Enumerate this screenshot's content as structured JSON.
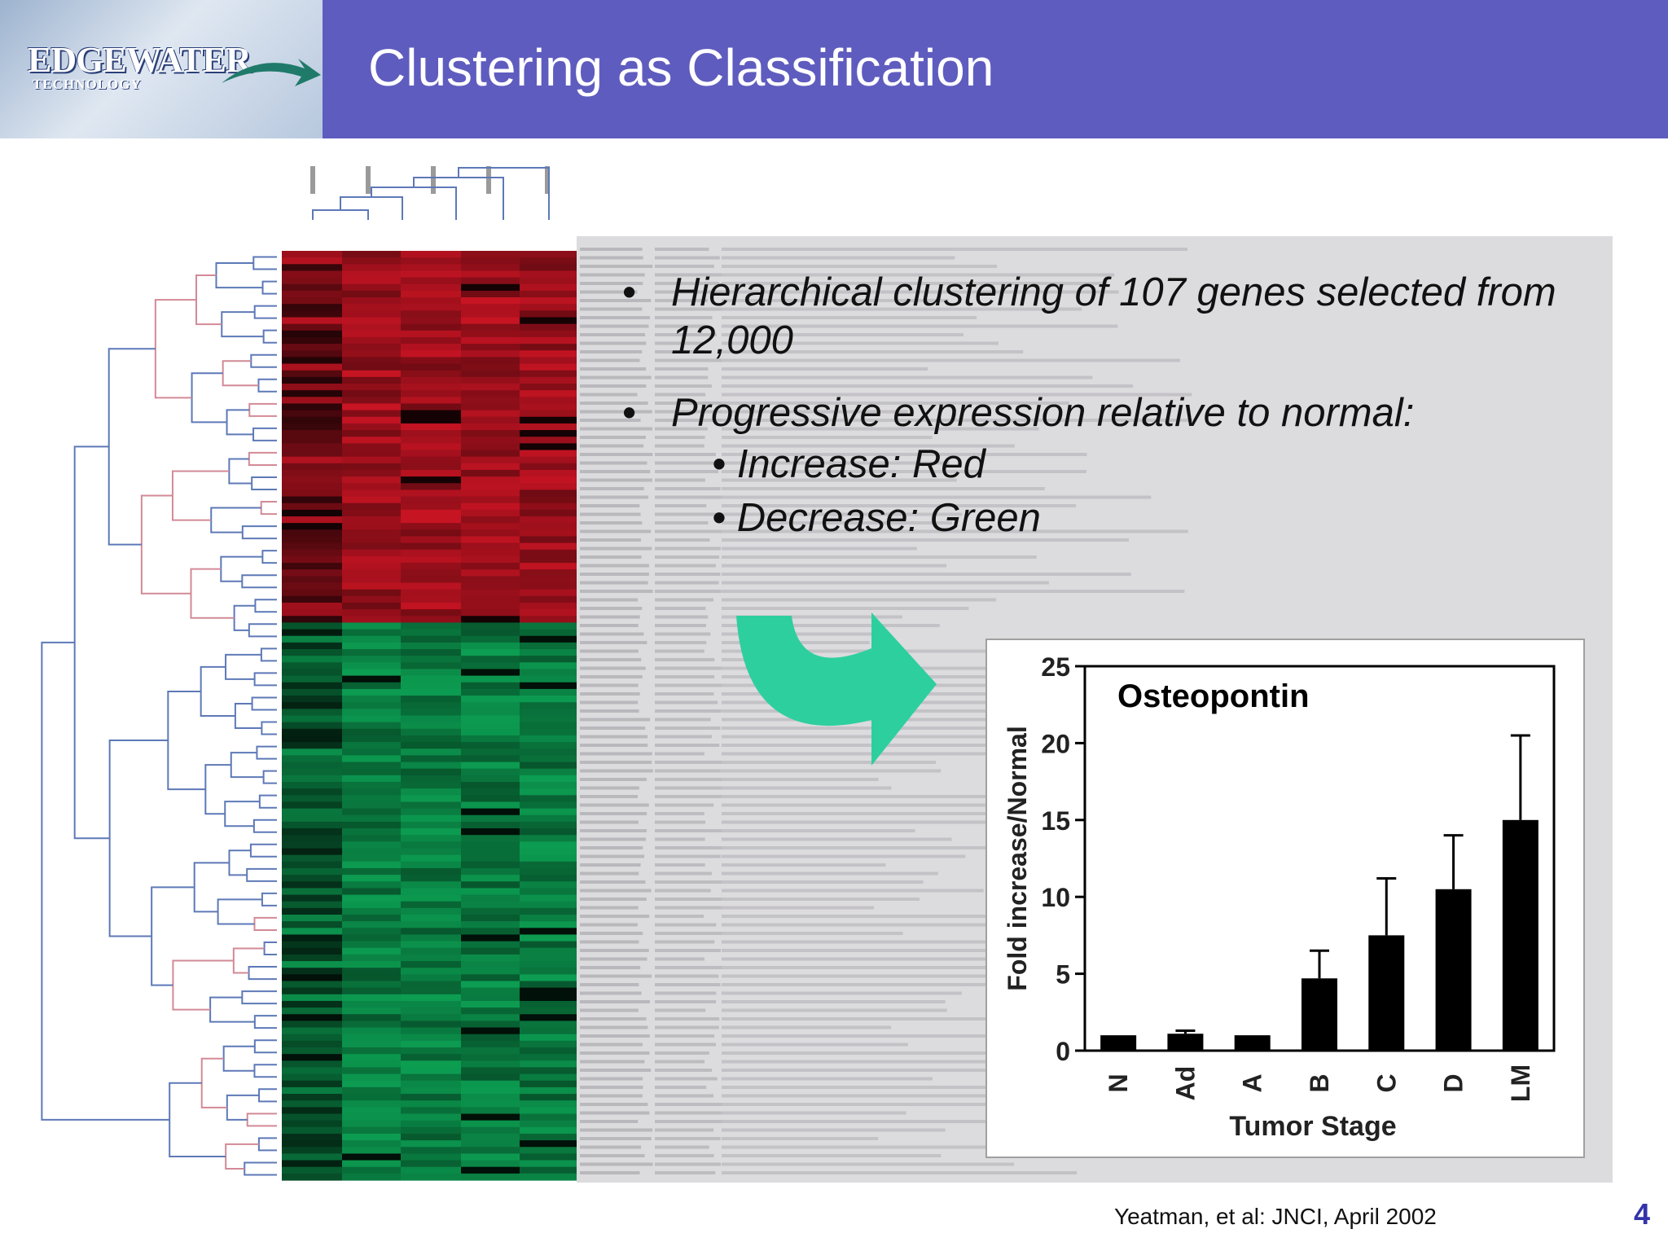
{
  "slide": {
    "title": "Clustering as Classification",
    "logo": {
      "name": "EDGEWATER",
      "sub": "TECHNOLOGY"
    },
    "bullets": [
      {
        "text": "Hierarchical clustering of 107 genes selected from 12,000"
      },
      {
        "text": "Progressive expression relative to normal:",
        "sub_items": [
          "Increase: Red",
          "Decrease: Green"
        ]
      }
    ],
    "citation": "Yeatman, et al: JNCI, April 2002",
    "page_number": "4",
    "colors": {
      "header": "#5f5cbf",
      "increase": "#c8102e",
      "decrease": "#0f9d58",
      "arrow": "#2ecf9e",
      "page_number": "#3333aa"
    }
  },
  "chart_data": {
    "type": "bar",
    "title": "Osteopontin",
    "xlabel": "Tumor Stage",
    "ylabel": "Fold increase/Normal",
    "categories": [
      "N",
      "Ad",
      "A",
      "B",
      "C",
      "D",
      "LM"
    ],
    "values": [
      1,
      1.1,
      1,
      4.7,
      7.5,
      10.5,
      15
    ],
    "error_upper": [
      1,
      1.3,
      1,
      6.5,
      11.2,
      14,
      20.5
    ],
    "yticks": [
      "0",
      "5",
      "10",
      "15",
      "20",
      "25"
    ],
    "ylim": [
      0,
      25
    ],
    "grid": false
  }
}
